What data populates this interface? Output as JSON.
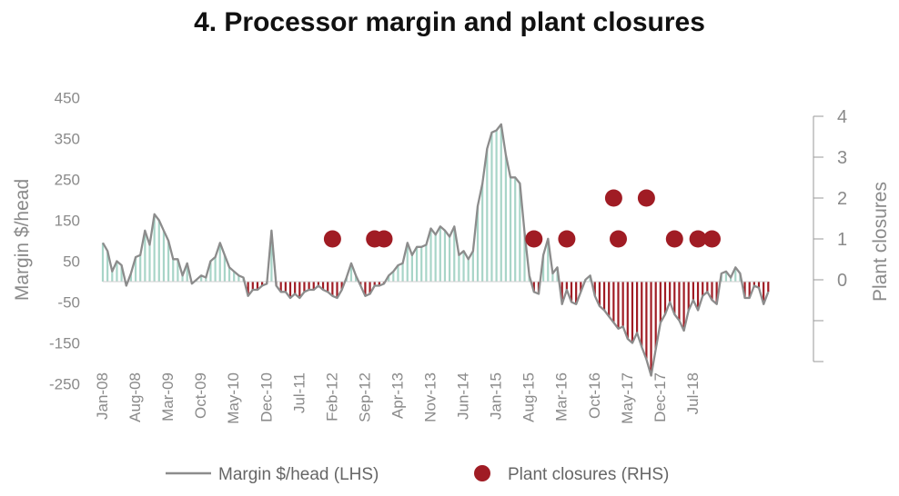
{
  "chart_data": {
    "type": "line",
    "title": "4. Processor margin and plant closures",
    "ylabel_left": "Margin $/head",
    "ylabel_right": "Plant closures",
    "y_left_ticks": [
      "450",
      "350",
      "250",
      "150",
      "50",
      "-50",
      "-150",
      "-250"
    ],
    "y_left_range": [
      -250,
      450
    ],
    "y_right_ticks": [
      "4",
      "3",
      "2",
      "1",
      "0"
    ],
    "y_right_range": [
      -2,
      4
    ],
    "x_tick_labels": [
      "Jan-08",
      "Aug-08",
      "Mar-09",
      "Oct-09",
      "May-10",
      "Dec-10",
      "Jul-11",
      "Feb-12",
      "Sep-12",
      "Apr-13",
      "Nov-13",
      "Jun-14",
      "Jan-15",
      "Aug-15",
      "Mar-16",
      "Oct-16",
      "May-17",
      "Dec-17",
      "Jul-18"
    ],
    "x_start": "Jan-08",
    "x_step": "1 month",
    "series": [
      {
        "name": "Margin $/head (LHS)",
        "color": "#8c8c8c",
        "positive_fill": "#a8d5c8",
        "negative_fill": "#a01c24",
        "values": [
          95,
          75,
          25,
          50,
          40,
          -10,
          20,
          60,
          65,
          125,
          90,
          165,
          150,
          125,
          100,
          55,
          55,
          15,
          45,
          -5,
          5,
          15,
          10,
          50,
          60,
          95,
          65,
          35,
          25,
          15,
          10,
          -35,
          -20,
          -20,
          -10,
          -5,
          125,
          -10,
          -25,
          -25,
          -40,
          -30,
          -40,
          -25,
          -20,
          -20,
          -10,
          -20,
          -25,
          -35,
          -40,
          -20,
          10,
          45,
          15,
          -10,
          -35,
          -30,
          -10,
          -10,
          -5,
          15,
          25,
          40,
          45,
          95,
          65,
          85,
          85,
          90,
          130,
          115,
          135,
          125,
          110,
          135,
          65,
          75,
          55,
          75,
          185,
          240,
          325,
          365,
          370,
          385,
          310,
          255,
          255,
          240,
          120,
          15,
          -25,
          -30,
          65,
          105,
          20,
          35,
          -55,
          -20,
          -50,
          -55,
          -25,
          5,
          15,
          -35,
          -60,
          -70,
          -85,
          -100,
          -115,
          -110,
          -140,
          -150,
          -125,
          -160,
          -190,
          -230,
          -165,
          -100,
          -80,
          -50,
          -80,
          -95,
          -120,
          -70,
          -45,
          -70,
          -35,
          -25,
          -45,
          -55,
          20,
          25,
          10,
          35,
          20,
          -40,
          -40,
          -10,
          -15,
          -55,
          -25
        ]
      },
      {
        "name": "Plant closures (RHS)",
        "color": "#a01c24",
        "points": [
          {
            "x": "Feb-12",
            "y": 1
          },
          {
            "x": "Nov-12",
            "y": 1
          },
          {
            "x": "Jan-13",
            "y": 1
          },
          {
            "x": "Sep-15",
            "y": 1
          },
          {
            "x": "Apr-16",
            "y": 1
          },
          {
            "x": "Feb-17",
            "y": 2
          },
          {
            "x": "Mar-17",
            "y": 1
          },
          {
            "x": "Sep-17",
            "y": 2
          },
          {
            "x": "Mar-18",
            "y": 1
          },
          {
            "x": "Aug-18",
            "y": 1
          },
          {
            "x": "Nov-18",
            "y": 1
          }
        ]
      }
    ],
    "legend": [
      "Margin $/head (LHS)",
      "Plant closures (RHS)"
    ],
    "legend_position": "bottom-center",
    "grid": false
  }
}
